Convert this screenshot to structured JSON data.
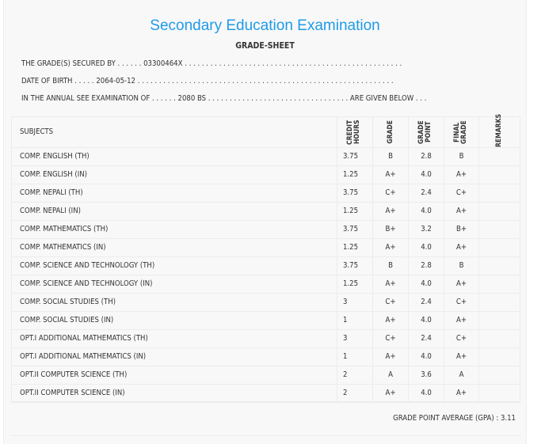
{
  "title": "Secondary Education Examination",
  "subtitle": "GRADE-SHEET",
  "lines": [
    "THE GRADE(S) SECURED BY . . . . . . 03300464X . . . . . . . . . . . . . . . . . . . . . . . . . . . . . . . . . . . . . . . . . . . . . . . . . . .",
    "DATE OF BIRTH . . . . . 2064-05-12 . . . . . . . . . . . . . . . . . . . . . . . . . . . . . . . . . . . . . . . . . . . . . . . . . . . . . . . . . . . .",
    "IN THE ANNUAL SEE EXAMINATION OF . . . . . . 2080 BS . . . . . . . . . . . . . . . . . . . . . . . . . . . . . . . . . ARE GIVEN BELOW . . ."
  ],
  "headers": {
    "subjects": "SUBJECTS",
    "credit": "CREDIT HOURS",
    "grade": "GRADE",
    "point": "GRADE POINT",
    "final": "FINAL GRADE",
    "remarks": "REMARKS"
  },
  "rows": [
    {
      "s": "COMP. ENGLISH (TH)",
      "c": "3.75",
      "g": "B",
      "p": "2.8",
      "f": "B"
    },
    {
      "s": "COMP. ENGLISH (IN)",
      "c": "1.25",
      "g": "A+",
      "p": "4.0",
      "f": "A+"
    },
    {
      "s": "COMP. NEPALI (TH)",
      "c": "3.75",
      "g": "C+",
      "p": "2.4",
      "f": "C+"
    },
    {
      "s": "COMP. NEPALI (IN)",
      "c": "1.25",
      "g": "A+",
      "p": "4.0",
      "f": "A+"
    },
    {
      "s": "COMP. MATHEMATICS (TH)",
      "c": "3.75",
      "g": "B+",
      "p": "3.2",
      "f": "B+"
    },
    {
      "s": "COMP. MATHEMATICS (IN)",
      "c": "1.25",
      "g": "A+",
      "p": "4.0",
      "f": "A+"
    },
    {
      "s": "COMP. SCIENCE AND TECHNOLOGY (TH)",
      "c": "3.75",
      "g": "B",
      "p": "2.8",
      "f": "B"
    },
    {
      "s": "COMP. SCIENCE AND TECHNOLOGY (IN)",
      "c": "1.25",
      "g": "A+",
      "p": "4.0",
      "f": "A+"
    },
    {
      "s": "COMP. SOCIAL STUDIES (TH)",
      "c": "3",
      "g": "C+",
      "p": "2.4",
      "f": "C+"
    },
    {
      "s": "COMP. SOCIAL STUDIES (IN)",
      "c": "1",
      "g": "A+",
      "p": "4.0",
      "f": "A+"
    },
    {
      "s": "OPT.I ADDITIONAL MATHEMATICS (TH)",
      "c": "3",
      "g": "C+",
      "p": "2.4",
      "f": "C+"
    },
    {
      "s": "OPT.I ADDITIONAL MATHEMATICS (IN)",
      "c": "1",
      "g": "A+",
      "p": "4.0",
      "f": "A+"
    },
    {
      "s": "OPT.II COMPUTER SCIENCE (TH)",
      "c": "2",
      "g": "A",
      "p": "3.6",
      "f": "A"
    },
    {
      "s": "OPT.II COMPUTER SCIENCE (IN)",
      "c": "2",
      "g": "A+",
      "p": "4.0",
      "f": "A+"
    }
  ],
  "gpa": "GRADE POINT AVERAGE (GPA) : 3.11"
}
